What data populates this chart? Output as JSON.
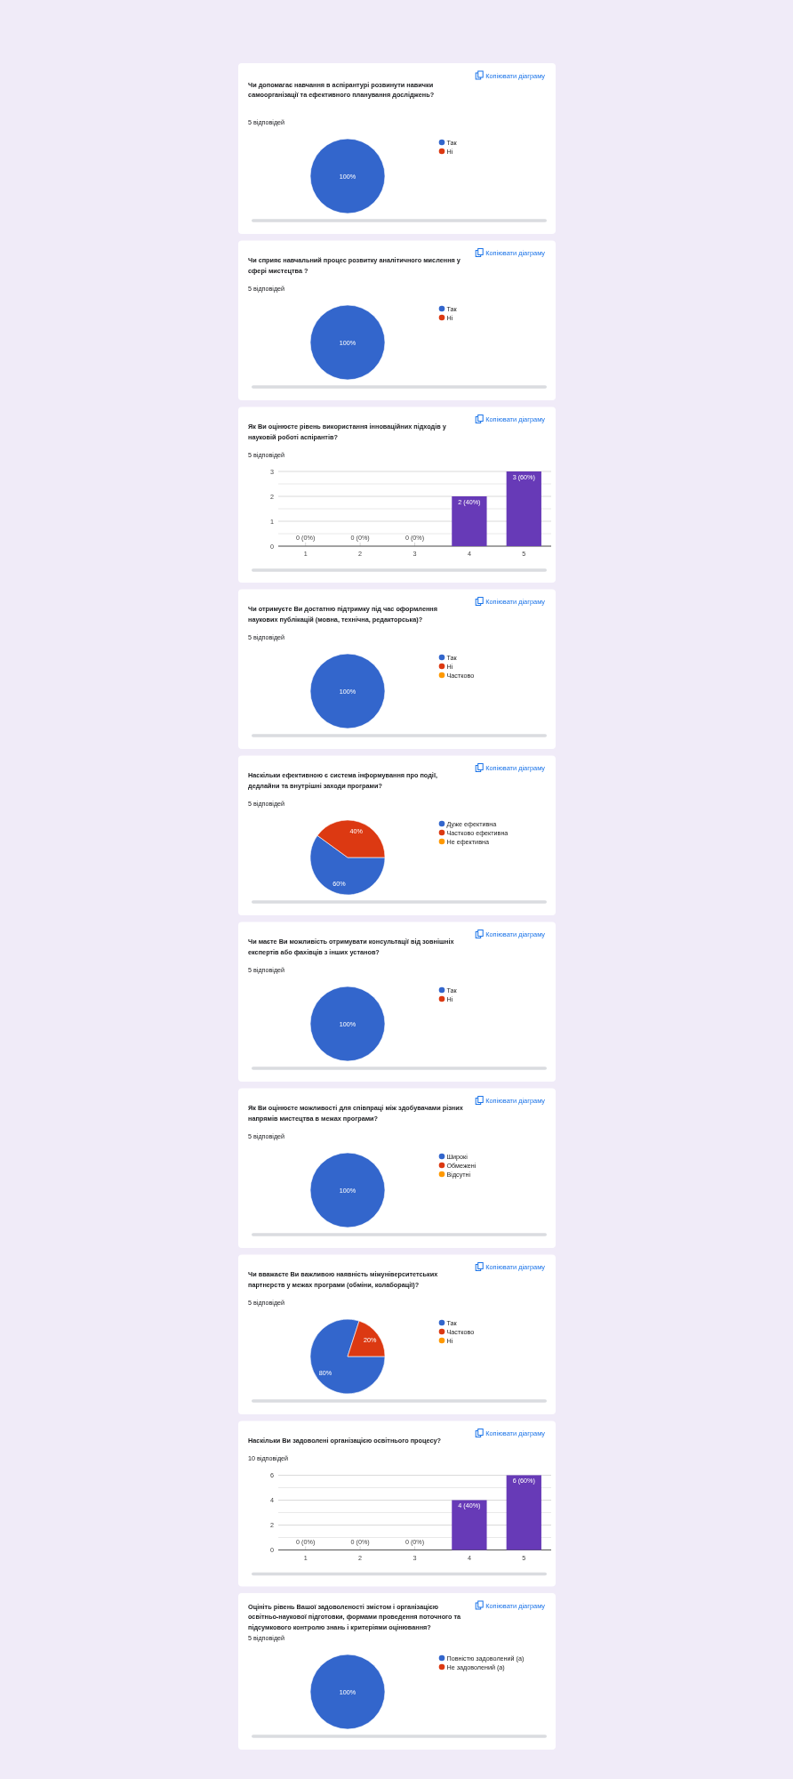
{
  "chart_data": [
    {
      "type": "pie",
      "title": "Чи допомагає навчання в аспірантурі розвинути навички самоорганізації та ефективного планування досліджень?",
      "subtitle": "5 відповідей",
      "categories": [
        "Так",
        "Ні"
      ],
      "values": [
        100,
        0
      ],
      "colors": [
        "#3366cc",
        "#dc3912"
      ],
      "value_labels": [
        "100%",
        null
      ],
      "legend": "right",
      "annotations": [
        "Копіювати діаграму"
      ]
    },
    {
      "type": "pie",
      "title": "Чи сприяє навчальний процес розвитку аналітичного мислення у сфері мистецтва ?",
      "subtitle": "5 відповідей",
      "categories": [
        "Так",
        "Ні"
      ],
      "values": [
        100,
        0
      ],
      "colors": [
        "#3366cc",
        "#dc3912"
      ],
      "value_labels": [
        "100%",
        null
      ],
      "legend": "right",
      "annotations": [
        "Копіювати діаграму"
      ]
    },
    {
      "type": "bar",
      "title": "Як Ви оцінюєте рівень використання інноваційних підходів у науковій роботі аспірантів?",
      "subtitle": "5 відповідей",
      "categories": [
        "1",
        "2",
        "3",
        "4",
        "5"
      ],
      "values": [
        0,
        0,
        0,
        2,
        3
      ],
      "color": "#673ab7",
      "value_labels": [
        "0 (0%)",
        "0 (0%)",
        "0 (0%)",
        "2 (40%)",
        "3 (60%)"
      ],
      "ylim": [
        0,
        3
      ],
      "yticks": [
        0,
        {
          "value": 0.5,
          "label": null
        },
        1,
        {
          "value": 1.5,
          "label": null
        },
        2,
        {
          "value": 2.5,
          "label": null
        },
        3
      ],
      "grid": "y",
      "annotations": [
        "Копіювати діаграму"
      ]
    },
    {
      "type": "pie",
      "title": "Чи отримуєте Ви достатню підтримку під час оформлення наукових публікацій (мовна, технічна, редакторська)?",
      "subtitle": "5 відповідей",
      "categories": [
        "Так",
        "Ні",
        "Частково"
      ],
      "values": [
        100,
        0,
        0
      ],
      "colors": [
        "#3366cc",
        "#dc3912",
        "#ff9900"
      ],
      "value_labels": [
        "100%",
        null,
        null
      ],
      "legend": "right",
      "annotations": [
        "Копіювати діаграму"
      ]
    },
    {
      "type": "pie",
      "title": "Наскільки ефективною є система інформування про події, дедлайни та внутрішні заходи програми?",
      "subtitle": "5 відповідей",
      "categories": [
        "Дуже ефективна",
        "Частково ефективна",
        "Не ефективна"
      ],
      "values": [
        60,
        40,
        0
      ],
      "colors": [
        "#3366cc",
        "#dc3912",
        "#ff9900"
      ],
      "value_labels": [
        "60%",
        "40%",
        null
      ],
      "legend": "right",
      "annotations": [
        "Копіювати діаграму"
      ]
    },
    {
      "type": "pie",
      "title": "Чи маєте Ви можливість отримувати консультації від зовнішніх експертів або фахівців з інших установ?",
      "subtitle": "5 відповідей",
      "categories": [
        "Так",
        "Ні"
      ],
      "values": [
        100,
        0
      ],
      "colors": [
        "#3366cc",
        "#dc3912"
      ],
      "value_labels": [
        "100%",
        null
      ],
      "legend": "right",
      "annotations": [
        "Копіювати діаграму"
      ]
    },
    {
      "type": "pie",
      "title": "Як Ви оцінюєте можливості для співпраці між здобувачами різних напрямів мистецтва в межах програми?",
      "subtitle": "5 відповідей",
      "categories": [
        "Широкі",
        "Обмежені",
        "Відсутні"
      ],
      "values": [
        100,
        0,
        0
      ],
      "colors": [
        "#3366cc",
        "#dc3912",
        "#ff9900"
      ],
      "value_labels": [
        "100%",
        null,
        null
      ],
      "legend": "right",
      "annotations": [
        "Копіювати діаграму"
      ]
    },
    {
      "type": "pie",
      "title": "Чи вважаєте Ви важливою наявність міжуніверситетських партнерств у межах програми (обміни, колаборації)?",
      "subtitle": "5 відповідей",
      "categories": [
        "Так",
        "Частково",
        "Ні"
      ],
      "values": [
        80,
        20,
        0
      ],
      "colors": [
        "#3366cc",
        "#dc3912",
        "#ff9900"
      ],
      "value_labels": [
        "80%",
        "20%",
        null
      ],
      "legend": "right",
      "annotations": [
        "Копіювати діаграму"
      ]
    },
    {
      "type": "bar",
      "title": "Наскільки Ви задоволені організацією освітнього процесу?",
      "subtitle": "10 відповідей",
      "categories": [
        "1",
        "2",
        "3",
        "4",
        "5"
      ],
      "values": [
        0,
        0,
        0,
        4,
        6
      ],
      "color": "#673ab7",
      "value_labels": [
        "0 (0%)",
        "0 (0%)",
        "0 (0%)",
        "4 (40%)",
        "6 (60%)"
      ],
      "ylim": [
        0,
        6
      ],
      "yticks": [
        0,
        {
          "value": 1,
          "label": null
        },
        2,
        {
          "value": 3,
          "label": null
        },
        4,
        {
          "value": 5,
          "label": null
        },
        6
      ],
      "grid": "y",
      "annotations": [
        "Копіювати діаграму"
      ]
    },
    {
      "type": "pie",
      "title": "Оцініть рівень Вашої задоволеності змістом і організацією освітньо-наукової підготовки, формами проведення поточного та підсумкового контролю знань і критеріями оцінювання?",
      "subtitle": "5 відповідей",
      "categories": [
        "Повністю задоволений (а)",
        "Не задоволений (а)"
      ],
      "values": [
        100,
        0
      ],
      "colors": [
        "#3366cc",
        "#dc3912"
      ],
      "value_labels": [
        "100%",
        null
      ],
      "legend": "right",
      "annotations": [
        "Копіювати діаграму"
      ]
    }
  ]
}
